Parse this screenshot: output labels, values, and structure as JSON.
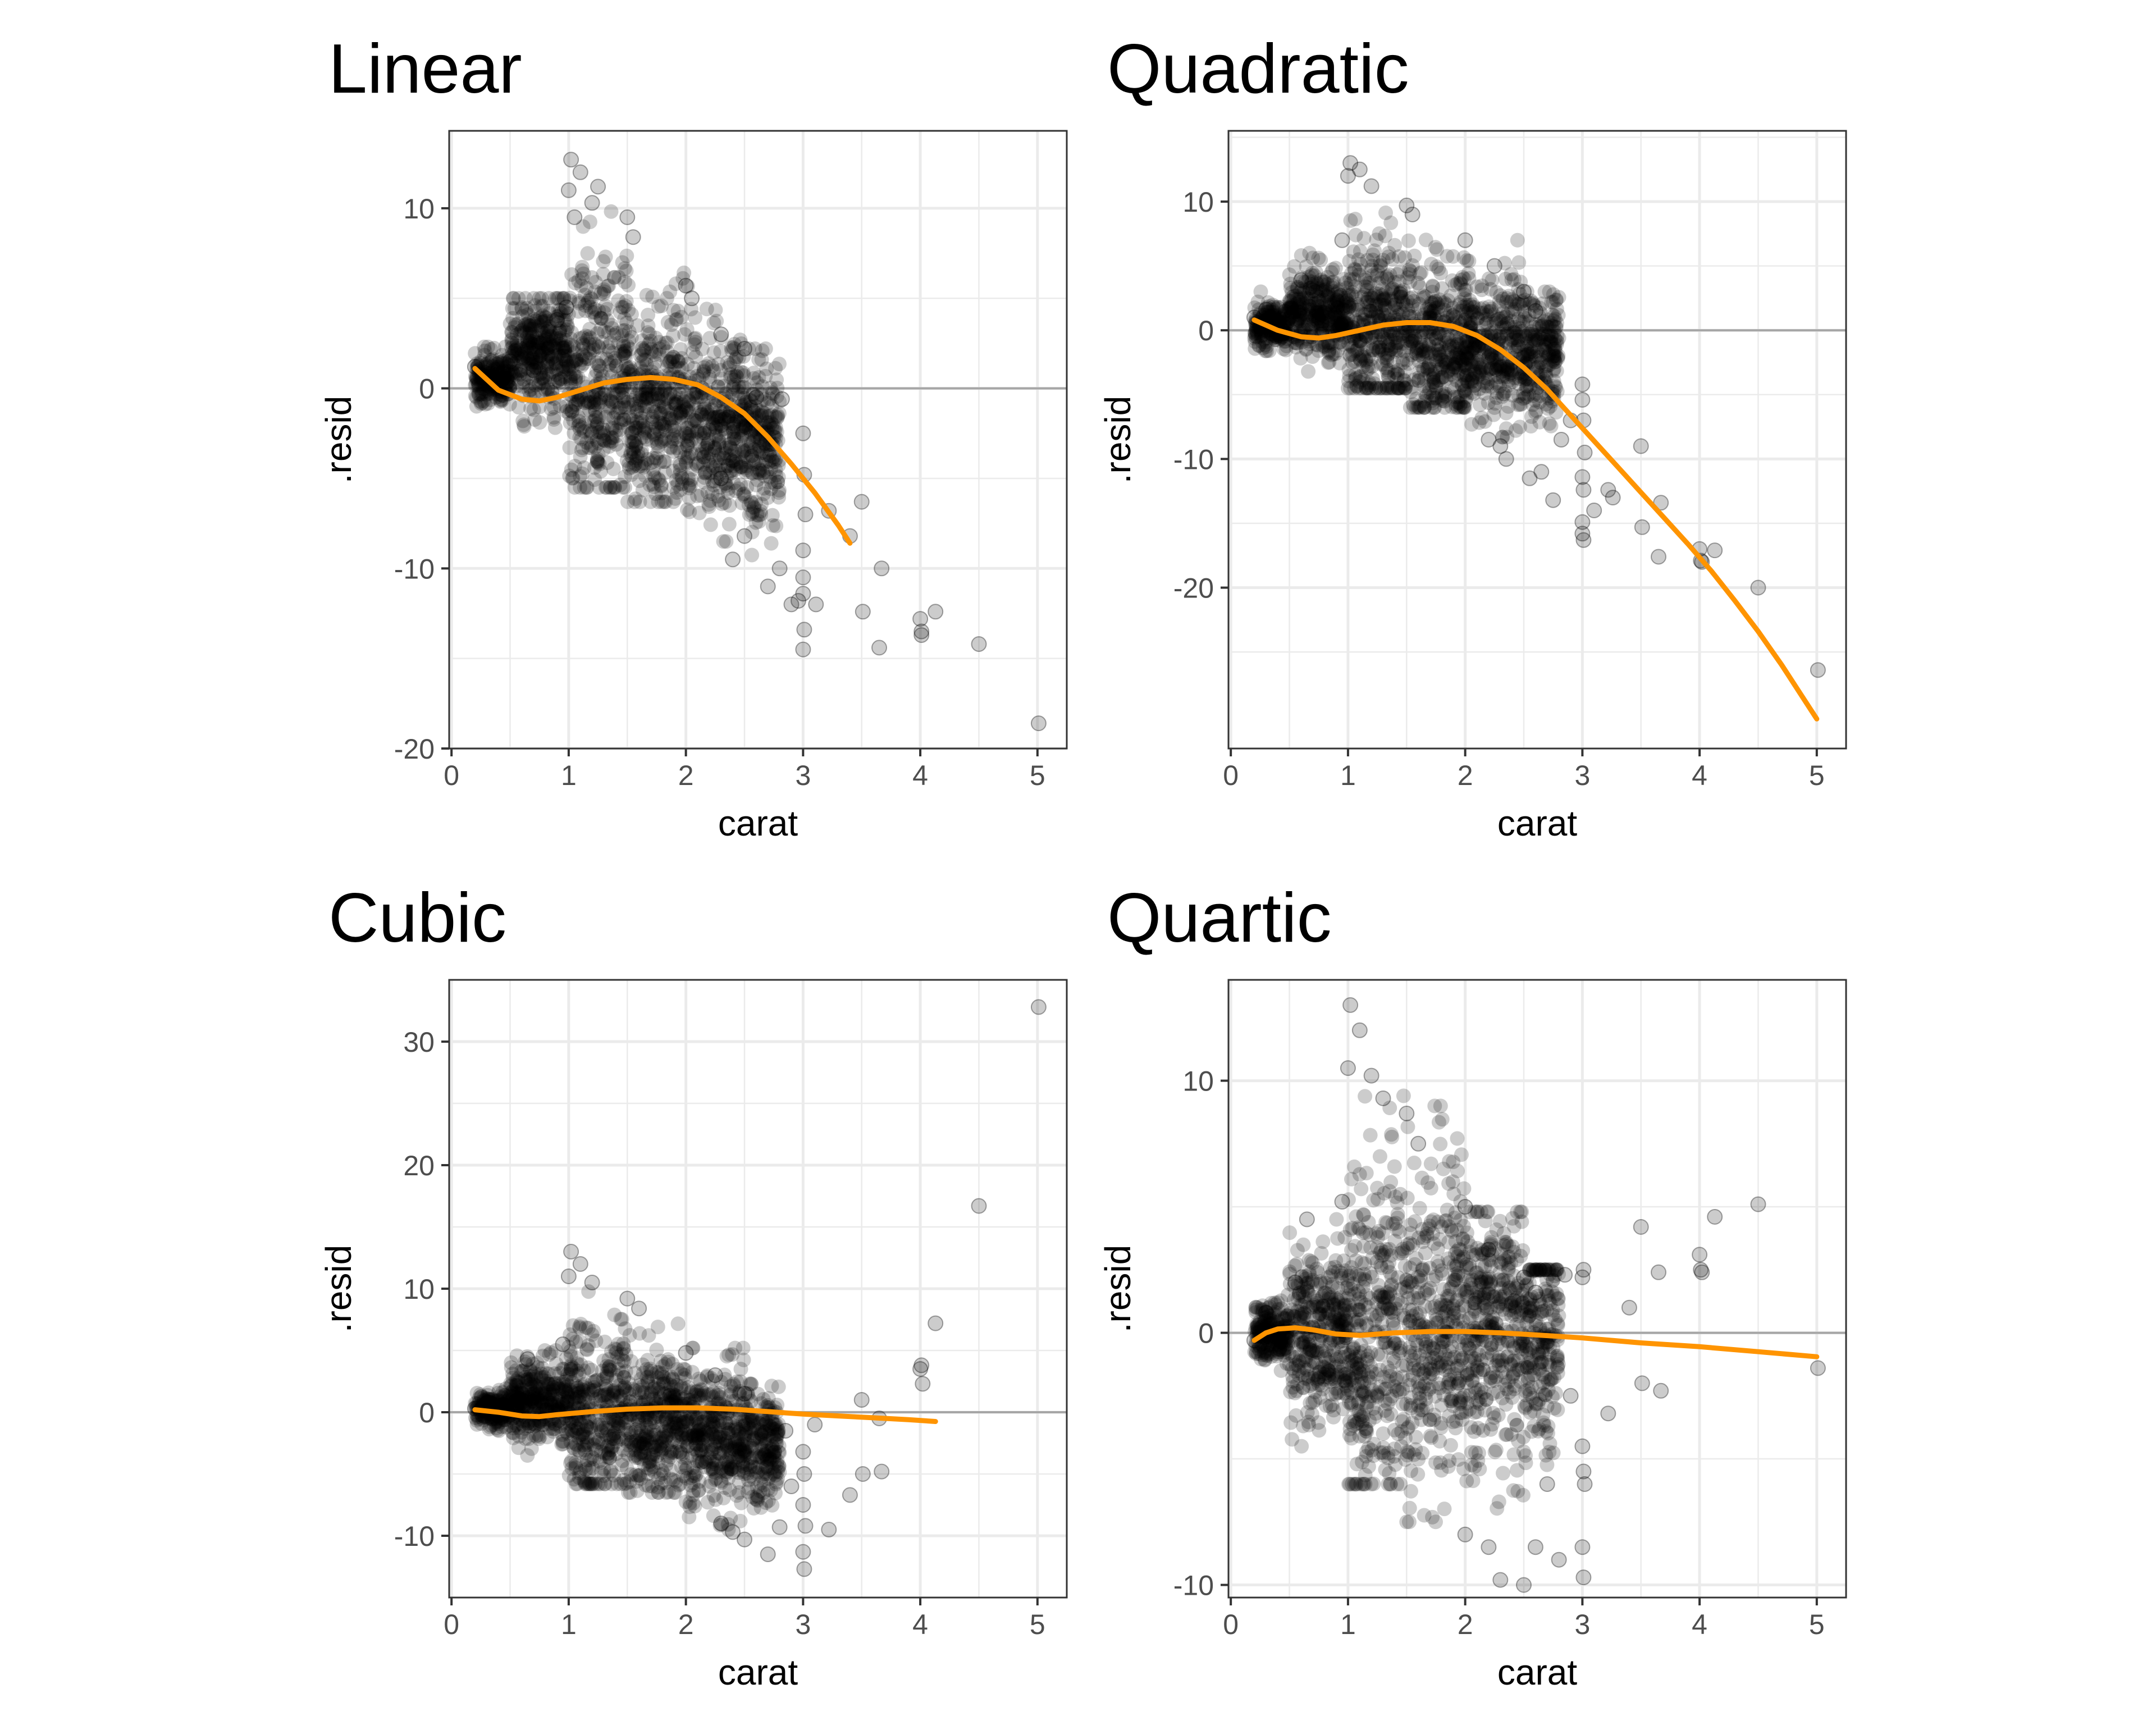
{
  "chart_data": [
    {
      "type": "scatter",
      "title": "Linear",
      "xlabel": "carat",
      "ylabel": ".resid",
      "xlim": [
        -0.02,
        5.25
      ],
      "ylim": [
        -20,
        14.3
      ],
      "xticks": [
        0,
        1,
        2,
        3,
        4,
        5
      ],
      "yticks": [
        -20,
        -10,
        0,
        10
      ],
      "grid": true,
      "reference_line_y": 0,
      "cloud": [
        [
          0.2,
          0.5,
          0.5,
          2.3,
          -1.8
        ],
        [
          0.5,
          1.0,
          2.0,
          5.0,
          -3.6
        ],
        [
          1.0,
          1.5,
          0,
          12.7,
          -5.5
        ],
        [
          1.5,
          2.0,
          -1,
          9.3,
          -6.3
        ],
        [
          2.0,
          2.5,
          -2,
          5.7,
          -8.5
        ],
        [
          2.5,
          2.8,
          -3,
          2.2,
          -10.0
        ]
      ],
      "points": [
        [
          0.2,
          1.2
        ],
        [
          0.35,
          0.3
        ],
        [
          0.5,
          1.5
        ],
        [
          0.7,
          1.0
        ],
        [
          0.9,
          3.8
        ],
        [
          0.98,
          4.5
        ],
        [
          1.0,
          11.0
        ],
        [
          1.02,
          12.7
        ],
        [
          1.05,
          9.5
        ],
        [
          1.1,
          12.0
        ],
        [
          1.2,
          10.3
        ],
        [
          1.25,
          11.2
        ],
        [
          1.5,
          9.5
        ],
        [
          1.55,
          8.4
        ],
        [
          2.0,
          5.7
        ],
        [
          2.05,
          5.0
        ],
        [
          2.3,
          3.0
        ],
        [
          2.5,
          2.2
        ],
        [
          2.6,
          -0.5
        ],
        [
          2.3,
          -5.0
        ],
        [
          2.4,
          -9.5
        ],
        [
          2.5,
          -8.2
        ],
        [
          2.7,
          -11.0
        ],
        [
          2.8,
          -10.0
        ],
        [
          2.82,
          -0.6
        ],
        [
          2.9,
          -12.0
        ],
        [
          2.96,
          -11.8
        ],
        [
          3.0,
          -2.5
        ],
        [
          3.01,
          -4.8
        ],
        [
          3.02,
          -7.0
        ],
        [
          3.0,
          -9.0
        ],
        [
          3.0,
          -10.5
        ],
        [
          3.0,
          -11.4
        ],
        [
          3.01,
          -13.4
        ],
        [
          3.0,
          -14.5
        ],
        [
          3.11,
          -12.0
        ],
        [
          3.22,
          -6.8
        ],
        [
          3.4,
          -8.2
        ],
        [
          3.5,
          -6.3
        ],
        [
          3.51,
          -12.4
        ],
        [
          3.65,
          -14.4
        ],
        [
          3.67,
          -10.0
        ],
        [
          4.0,
          -12.8
        ],
        [
          4.01,
          -13.5
        ],
        [
          4.01,
          -13.7
        ],
        [
          4.13,
          -12.4
        ],
        [
          4.5,
          -14.2
        ],
        [
          5.01,
          -18.6
        ]
      ],
      "smooth": [
        [
          0.2,
          1.1
        ],
        [
          0.4,
          -0.1
        ],
        [
          0.6,
          -0.6
        ],
        [
          0.75,
          -0.7
        ],
        [
          0.9,
          -0.5
        ],
        [
          1.1,
          -0.1
        ],
        [
          1.3,
          0.3
        ],
        [
          1.5,
          0.5
        ],
        [
          1.7,
          0.6
        ],
        [
          1.9,
          0.5
        ],
        [
          2.1,
          0.2
        ],
        [
          2.3,
          -0.5
        ],
        [
          2.5,
          -1.4
        ],
        [
          2.7,
          -2.7
        ],
        [
          2.9,
          -4.2
        ],
        [
          3.1,
          -5.8
        ],
        [
          3.3,
          -7.6
        ],
        [
          3.4,
          -8.6
        ]
      ]
    },
    {
      "type": "scatter",
      "title": "Quadratic",
      "xlabel": "carat",
      "ylabel": ".resid",
      "xlim": [
        -0.02,
        5.25
      ],
      "ylim": [
        -32.5,
        15.5
      ],
      "xticks": [
        0,
        1,
        2,
        3,
        4,
        5
      ],
      "yticks": [
        -20,
        -10,
        0,
        10
      ],
      "grid": true,
      "reference_line_y": 0,
      "cloud": [
        [
          0.2,
          0.5,
          0.2,
          3.0,
          -1.6
        ],
        [
          0.5,
          1.0,
          1.5,
          6.0,
          -3.2
        ],
        [
          1.0,
          1.5,
          0,
          13.0,
          -4.5
        ],
        [
          1.5,
          2.0,
          -1,
          9.8,
          -6.0
        ],
        [
          2.0,
          2.5,
          -1.5,
          7.0,
          -8.3
        ],
        [
          2.5,
          2.8,
          -2,
          3.0,
          -10.2
        ]
      ],
      "points": [
        [
          0.2,
          1.0
        ],
        [
          0.3,
          1.6
        ],
        [
          0.6,
          3.9
        ],
        [
          0.7,
          3.1
        ],
        [
          0.95,
          7.0
        ],
        [
          1.0,
          12.0
        ],
        [
          1.02,
          13.0
        ],
        [
          1.1,
          12.5
        ],
        [
          1.2,
          11.2
        ],
        [
          1.5,
          9.7
        ],
        [
          1.55,
          9.0
        ],
        [
          2.0,
          7.0
        ],
        [
          2.25,
          5.0
        ],
        [
          2.5,
          3.0
        ],
        [
          2.6,
          1.5
        ],
        [
          2.2,
          -8.5
        ],
        [
          2.3,
          -9.0
        ],
        [
          2.35,
          -10.0
        ],
        [
          2.55,
          -11.5
        ],
        [
          2.65,
          -11.0
        ],
        [
          2.75,
          -13.2
        ],
        [
          2.82,
          -8.5
        ],
        [
          2.9,
          -7.0
        ],
        [
          3.0,
          -4.2
        ],
        [
          3.0,
          -5.4
        ],
        [
          3.01,
          -7.0
        ],
        [
          3.02,
          -9.5
        ],
        [
          3.0,
          -11.4
        ],
        [
          3.01,
          -12.4
        ],
        [
          3.0,
          -14.9
        ],
        [
          3.0,
          -15.8
        ],
        [
          3.01,
          -16.3
        ],
        [
          3.1,
          -14.0
        ],
        [
          3.22,
          -12.4
        ],
        [
          3.26,
          -13.0
        ],
        [
          3.5,
          -9.0
        ],
        [
          3.51,
          -15.3
        ],
        [
          3.65,
          -17.6
        ],
        [
          3.67,
          -13.4
        ],
        [
          4.0,
          -17.0
        ],
        [
          4.01,
          -17.9
        ],
        [
          4.02,
          -18.0
        ],
        [
          4.13,
          -17.1
        ],
        [
          4.5,
          -20.0
        ],
        [
          5.01,
          -26.4
        ]
      ],
      "smooth": [
        [
          0.2,
          0.8
        ],
        [
          0.4,
          0.0
        ],
        [
          0.6,
          -0.5
        ],
        [
          0.75,
          -0.6
        ],
        [
          0.9,
          -0.4
        ],
        [
          1.1,
          0.0
        ],
        [
          1.3,
          0.4
        ],
        [
          1.5,
          0.6
        ],
        [
          1.7,
          0.6
        ],
        [
          1.9,
          0.3
        ],
        [
          2.1,
          -0.4
        ],
        [
          2.3,
          -1.5
        ],
        [
          2.5,
          -2.9
        ],
        [
          2.7,
          -4.6
        ],
        [
          2.9,
          -6.6
        ],
        [
          3.1,
          -8.6
        ],
        [
          3.3,
          -10.6
        ],
        [
          3.5,
          -12.6
        ],
        [
          3.7,
          -14.6
        ],
        [
          3.9,
          -16.6
        ],
        [
          4.1,
          -18.7
        ],
        [
          4.3,
          -21.0
        ],
        [
          4.5,
          -23.4
        ],
        [
          4.7,
          -26.0
        ],
        [
          4.9,
          -28.8
        ],
        [
          5.0,
          -30.2
        ]
      ]
    },
    {
      "type": "scatter",
      "title": "Cubic",
      "xlabel": "carat",
      "ylabel": ".resid",
      "xlim": [
        -0.02,
        5.25
      ],
      "ylim": [
        -15,
        35
      ],
      "xticks": [
        0,
        1,
        2,
        3,
        4,
        5
      ],
      "yticks": [
        -10,
        0,
        10,
        20,
        30
      ],
      "grid": true,
      "reference_line_y": 0,
      "cloud": [
        [
          0.2,
          0.5,
          0.3,
          2.2,
          -1.5
        ],
        [
          0.5,
          1.0,
          1.0,
          5.0,
          -3.5
        ],
        [
          1.0,
          1.5,
          0,
          13.0,
          -5.8
        ],
        [
          1.5,
          2.0,
          -1,
          9.3,
          -6.5
        ],
        [
          2.0,
          2.5,
          -2,
          5.2,
          -9.5
        ],
        [
          2.5,
          2.8,
          -2.5,
          2.3,
          -10.5
        ]
      ],
      "points": [
        [
          0.2,
          0.3
        ],
        [
          0.3,
          0.5
        ],
        [
          0.65,
          4.3
        ],
        [
          0.95,
          5.5
        ],
        [
          1.0,
          11.0
        ],
        [
          1.02,
          13.0
        ],
        [
          1.1,
          12.0
        ],
        [
          1.2,
          10.5
        ],
        [
          1.5,
          9.2
        ],
        [
          1.6,
          8.4
        ],
        [
          2.0,
          4.8
        ],
        [
          2.25,
          3.0
        ],
        [
          2.5,
          1.5
        ],
        [
          2.3,
          -9.0
        ],
        [
          2.4,
          -9.7
        ],
        [
          2.5,
          -10.3
        ],
        [
          2.7,
          -11.5
        ],
        [
          2.8,
          -9.3
        ],
        [
          2.85,
          -1.5
        ],
        [
          2.9,
          -6.0
        ],
        [
          3.0,
          -3.2
        ],
        [
          3.01,
          -5.0
        ],
        [
          3.0,
          -7.5
        ],
        [
          3.02,
          -9.2
        ],
        [
          3.0,
          -11.3
        ],
        [
          3.01,
          -12.7
        ],
        [
          3.1,
          -1.0
        ],
        [
          3.22,
          -9.5
        ],
        [
          3.4,
          -6.7
        ],
        [
          3.5,
          1.0
        ],
        [
          3.51,
          -5.0
        ],
        [
          3.65,
          -0.5
        ],
        [
          3.67,
          -4.8
        ],
        [
          4.0,
          3.5
        ],
        [
          4.01,
          3.8
        ],
        [
          4.02,
          2.3
        ],
        [
          4.13,
          7.2
        ],
        [
          4.5,
          16.7
        ],
        [
          5.01,
          32.8
        ]
      ],
      "smooth": [
        [
          0.2,
          0.2
        ],
        [
          0.4,
          0.0
        ],
        [
          0.6,
          -0.3
        ],
        [
          0.75,
          -0.35
        ],
        [
          0.9,
          -0.2
        ],
        [
          1.2,
          0.05
        ],
        [
          1.5,
          0.25
        ],
        [
          1.8,
          0.35
        ],
        [
          2.1,
          0.35
        ],
        [
          2.4,
          0.25
        ],
        [
          2.7,
          0.05
        ],
        [
          3.0,
          -0.15
        ],
        [
          3.3,
          -0.3
        ],
        [
          3.6,
          -0.45
        ],
        [
          3.9,
          -0.6
        ],
        [
          4.13,
          -0.75
        ]
      ]
    },
    {
      "type": "scatter",
      "title": "Quartic",
      "xlabel": "carat",
      "ylabel": ".resid",
      "xlim": [
        -0.02,
        5.25
      ],
      "ylim": [
        -10.5,
        14
      ],
      "xticks": [
        0,
        1,
        2,
        3,
        4,
        5
      ],
      "yticks": [
        -10,
        0,
        10
      ],
      "grid": true,
      "reference_line_y": 0,
      "cloud": [
        [
          0.2,
          0.5,
          0,
          1.5,
          -1.5
        ],
        [
          0.5,
          1.0,
          0,
          4.5,
          -4.5
        ],
        [
          1.0,
          1.5,
          0,
          13.0,
          -6.0
        ],
        [
          1.5,
          2.0,
          0,
          9.0,
          -7.5
        ],
        [
          2.0,
          2.5,
          0,
          4.8,
          -9.5
        ],
        [
          2.5,
          2.8,
          0,
          2.5,
          -9.8
        ]
      ],
      "points": [
        [
          0.2,
          -0.3
        ],
        [
          0.3,
          0.8
        ],
        [
          0.55,
          2.0
        ],
        [
          0.65,
          4.5
        ],
        [
          0.95,
          5.2
        ],
        [
          1.0,
          10.5
        ],
        [
          1.02,
          13.0
        ],
        [
          1.1,
          12.0
        ],
        [
          1.2,
          10.2
        ],
        [
          1.3,
          9.3
        ],
        [
          1.5,
          8.7
        ],
        [
          1.6,
          7.5
        ],
        [
          2.0,
          5.0
        ],
        [
          2.2,
          3.3
        ],
        [
          2.5,
          2.2
        ],
        [
          2.6,
          1.6
        ],
        [
          2.0,
          -8.0
        ],
        [
          2.2,
          -8.5
        ],
        [
          2.3,
          -9.8
        ],
        [
          2.5,
          -10.0
        ],
        [
          2.6,
          -8.5
        ],
        [
          2.7,
          -6.0
        ],
        [
          2.8,
          -9.0
        ],
        [
          2.85,
          2.3
        ],
        [
          2.9,
          -2.5
        ],
        [
          3.0,
          2.2
        ],
        [
          3.01,
          2.5
        ],
        [
          3.0,
          -4.5
        ],
        [
          3.01,
          -5.5
        ],
        [
          3.02,
          -6.0
        ],
        [
          3.0,
          -8.5
        ],
        [
          3.01,
          -9.7
        ],
        [
          3.22,
          -3.2
        ],
        [
          3.4,
          1.0
        ],
        [
          3.5,
          4.2
        ],
        [
          3.51,
          -2.0
        ],
        [
          3.65,
          2.4
        ],
        [
          3.67,
          -2.3
        ],
        [
          4.0,
          3.1
        ],
        [
          4.01,
          2.5
        ],
        [
          4.02,
          2.4
        ],
        [
          4.13,
          4.6
        ],
        [
          4.5,
          5.1
        ],
        [
          5.01,
          -1.4
        ]
      ],
      "smooth": [
        [
          0.2,
          -0.3
        ],
        [
          0.3,
          0.0
        ],
        [
          0.4,
          0.15
        ],
        [
          0.55,
          0.2
        ],
        [
          0.7,
          0.12
        ],
        [
          0.9,
          -0.05
        ],
        [
          1.1,
          -0.1
        ],
        [
          1.4,
          0.0
        ],
        [
          1.7,
          0.05
        ],
        [
          2.0,
          0.05
        ],
        [
          2.3,
          0.0
        ],
        [
          2.6,
          -0.08
        ],
        [
          3.0,
          -0.2
        ],
        [
          3.5,
          -0.4
        ],
        [
          4.0,
          -0.55
        ],
        [
          4.5,
          -0.75
        ],
        [
          5.0,
          -0.95
        ]
      ]
    }
  ],
  "style": {
    "point_color": "#000000",
    "point_opacity": 0.2,
    "smooth_color": "#FF9400",
    "zero_line_color": "#a6a6a6",
    "grid_color": "#ebebeb",
    "border_color": "#333333"
  }
}
